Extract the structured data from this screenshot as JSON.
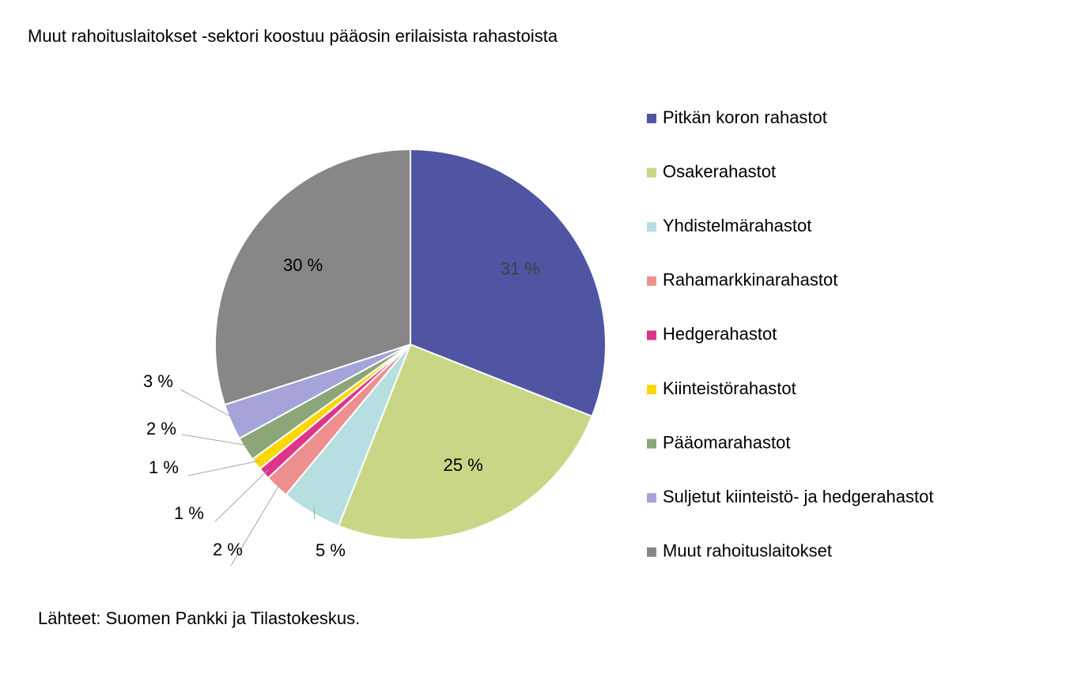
{
  "chart_data": {
    "type": "pie",
    "title": "Muut rahoituslaitokset -sektori koostuu pääosin erilaisista rahastoista",
    "categories": [
      "Pitkän koron rahastot",
      "Osakerahastot",
      "Yhdistelmärahastot",
      "Rahamarkkinarahastot",
      "Hedgerahastot",
      "Kiinteistörahastot",
      "Pääomarahastot",
      "Suljetut kiinteistö- ja hedgerahastot",
      "Muut rahoituslaitokset"
    ],
    "values": [
      31,
      25,
      5,
      2,
      1,
      1,
      2,
      3,
      30
    ],
    "value_labels": [
      "31 %",
      "25 %",
      "5 %",
      "2 %",
      "1 %",
      "1 %",
      "2 %",
      "3 %",
      "30 %"
    ],
    "colors": [
      "#4f55a3",
      "#c9d686",
      "#b7dee1",
      "#ee8f8f",
      "#e0338a",
      "#ffd700",
      "#8ba678",
      "#a6a3d9",
      "#878787"
    ],
    "legend": "right",
    "source": "Lähteet: Suomen Pankki ja Tilastokeskus."
  }
}
